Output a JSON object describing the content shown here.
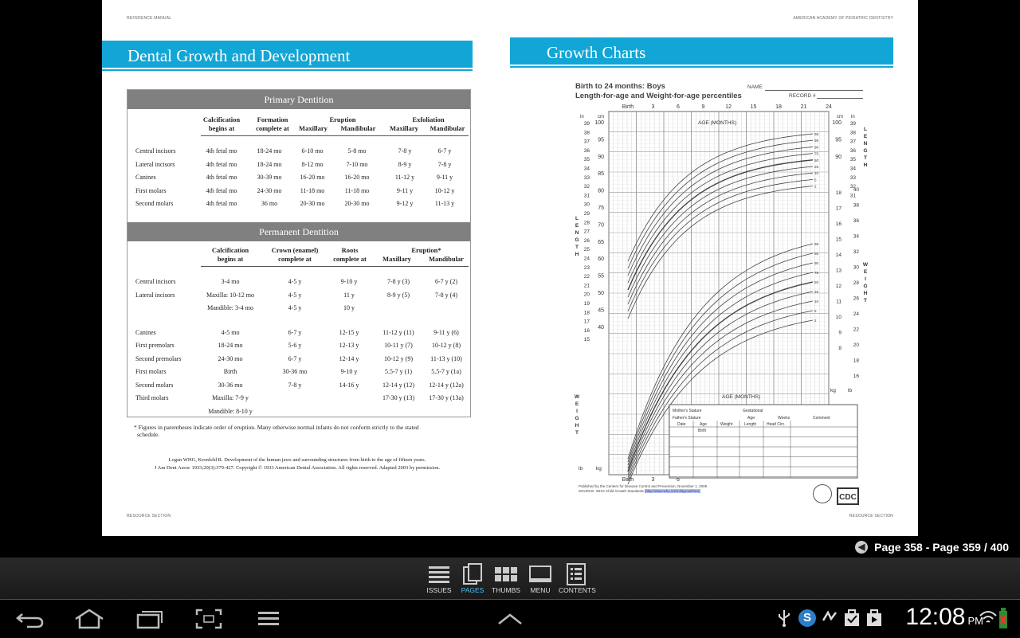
{
  "left_page": {
    "header": "REFERENCE MANUAL",
    "title": "Dental Growth and Development",
    "footer": "RESOURCE SECTION",
    "primary": {
      "heading": "Primary Dentition",
      "col_calc": "Calcification begins at",
      "col_form": "Formation complete at",
      "col_erupt": "Eruption",
      "col_exfol": "Exfoliation",
      "sub_max": "Maxillary",
      "sub_mand": "Mandibular",
      "rows": [
        [
          "Central incisors",
          "4th fetal mo",
          "18-24 mo",
          "6-10 mo",
          "5-8 mo",
          "7-8 y",
          "6-7 y"
        ],
        [
          "Lateral incisors",
          "4th fetal mo",
          "18-24 mo",
          "8-12 mo",
          "7-10  mo",
          "8-9 y",
          "7-8 y"
        ],
        [
          "Canines",
          "4th fetal mo",
          "30-39 mo",
          "16-20 mo",
          "16-20 mo",
          "11-12 y",
          "9-11 y"
        ],
        [
          "First molars",
          "4th fetal mo",
          "24-30 mo",
          "11-18 mo",
          "11-18 mo",
          "9-11 y",
          "10-12 y"
        ],
        [
          "Second molars",
          "4th fetal mo",
          "36 mo",
          "20-30 mo",
          "20-30 mo",
          "9-12 y",
          "11-13 y"
        ]
      ]
    },
    "permanent": {
      "heading": "Permanent Dentition",
      "col_calc": "Calcification begins at",
      "col_crown": "Crown (enamel) complete at",
      "col_roots": "Roots complete at",
      "col_erupt": "Eruption*",
      "sub_max": "Maxillary",
      "sub_mand": "Mandibular",
      "rows": [
        [
          "Central incisors",
          "3-4 mo",
          "4-5 y",
          "9-10 y",
          "7-8 y (3)",
          "6-7 y (2)"
        ],
        [
          "Lateral incisors",
          "Maxilla: 10-12 mo",
          "4-5 y",
          "11 y",
          "8-9 y (5)",
          "7-8 y (4)"
        ],
        [
          "",
          "Mandible: 3-4 mo",
          "4-5 y",
          "10 y",
          "",
          ""
        ],
        [
          "Canines",
          "4-5 mo",
          "6-7 y",
          "12-15 y",
          "11-12 y (11)",
          "9-11 y (6)"
        ],
        [
          "First premolars",
          "18-24 mo",
          "5-6 y",
          "12-13 y",
          "10-11 y (7)",
          "10-12 y (8)"
        ],
        [
          "Second premolars",
          "24-30 mo",
          "6-7 y",
          "12-14 y",
          "10-12 y (9)",
          "11-13 y (10)"
        ],
        [
          "First molars",
          "Birth",
          "30-36 mo",
          "9-10 y",
          "5.5-7 y (1)",
          "5.5-7 y (1a)"
        ],
        [
          "Second molars",
          "30-36 mo",
          "7-8 y",
          "14-16 y",
          "12-14 y (12)",
          "12-14 y (12a)"
        ],
        [
          "Third molars",
          "Maxilla: 7-9 y",
          "",
          "",
          "17-30 y (13)",
          "17-30 y (13a)"
        ],
        [
          "",
          "Mandible: 8-10 y",
          "",
          "",
          "",
          ""
        ]
      ]
    },
    "footnote_1": "* Figures in parentheses indicate order of eruption. Many otherwise normal infants do not conform strictly to the stated",
    "footnote_2": "schedule.",
    "citation_1": "Logan WHG, Kronfeld R. Development of the human jaws and surrounding structures from birth to the age of fifteen years.",
    "citation_2": "J Am Dent Assoc 1933;20(3):379-427. Copyright © 1933 American Dental Association. All rights reserved. Adapted 2003 by permission."
  },
  "right_page": {
    "header": "AMERICAN ACADEMY OF PEDIATRIC DENTISTRY",
    "title": "Growth Charts",
    "footer": "RESOURCE SECTION",
    "chart": {
      "title_1": "Birth to 24 months: Boys",
      "title_2": "Length-for-age and Weight-for-age percentiles",
      "name_label": "NAME",
      "record_label": "RECORD #",
      "age_label": "AGE (MONTHS)",
      "age_ticks": [
        "Birth",
        "3",
        "6",
        "9",
        "12",
        "15",
        "18",
        "21",
        "24"
      ],
      "bottom_ticks": [
        "Birth",
        "3",
        "6"
      ],
      "length_word": "LENGTH",
      "weight_word": "WEIGHT",
      "unit_in": "in",
      "unit_cm": "cm",
      "unit_kg": "kg",
      "unit_lb": "lb",
      "cm_ticks": [
        "100",
        "95",
        "90",
        "85",
        "80",
        "75",
        "70",
        "65",
        "60",
        "55",
        "50",
        "45",
        "40"
      ],
      "in_ticks": [
        "39",
        "38",
        "37",
        "36",
        "35",
        "34",
        "33",
        "32",
        "31",
        "30",
        "29",
        "28",
        "27",
        "26",
        "25",
        "24",
        "23",
        "22",
        "21",
        "20",
        "19",
        "18",
        "17",
        "16",
        "15"
      ],
      "kg_ticks": [
        "18",
        "17",
        "16",
        "15",
        "14",
        "13",
        "12",
        "11",
        "10",
        "9",
        "8"
      ],
      "lb_ticks": [
        "40",
        "38",
        "36",
        "34",
        "32",
        "30",
        "28",
        "26",
        "24",
        "22",
        "20",
        "18",
        "16"
      ],
      "percentiles": [
        "98",
        "95",
        "90",
        "75",
        "50",
        "25",
        "10",
        "5",
        "2"
      ],
      "table_labels": [
        "Mother's Stature",
        "Gestational",
        "Father's Stature",
        "Age:",
        "Weeks",
        "Comment",
        "Date",
        "Age",
        "Weight",
        "Length",
        "Head Circ.",
        "Birth"
      ],
      "published_1": "Published by the Centers for Disease Control and Prevention, November 1, 2009",
      "published_2": "SOURCE: WHO Child Growth Standards",
      "published_link": "(http://www.who.int/childgrowth/en)",
      "logo_text": "CDC"
    }
  },
  "reader": {
    "page_indicator": "Page 358 - Page 359 / 400",
    "toolbar": [
      {
        "label": "ISSUES",
        "icon": "issues-icon"
      },
      {
        "label": "PAGES",
        "icon": "pages-icon",
        "active": true
      },
      {
        "label": "THUMBS",
        "icon": "thumbs-icon"
      },
      {
        "label": "MENU",
        "icon": "menu-icon"
      },
      {
        "label": "CONTENTS",
        "icon": "contents-icon"
      }
    ]
  },
  "system": {
    "time": "12:08",
    "ampm": "PM"
  }
}
